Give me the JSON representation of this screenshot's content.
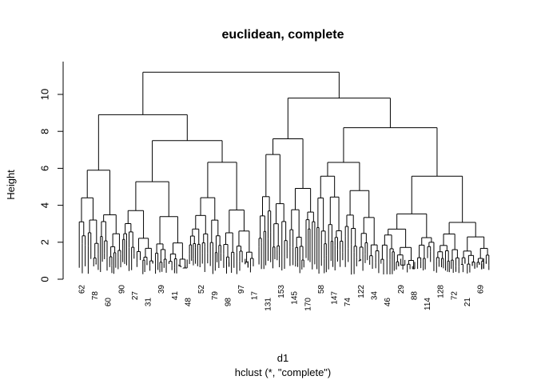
{
  "chart_data": {
    "type": "dendrogram",
    "title": "euclidean, complete",
    "xlabel": "d1",
    "sublabel": "hclust (*, \"complete\")",
    "ylabel": "Height",
    "ylim": [
      0,
      11.2
    ],
    "yticks": [
      0,
      2,
      4,
      6,
      8,
      10
    ],
    "root_height": 11.2,
    "main_clusters": [
      {
        "height": 8.9,
        "children_heights": [
          5.9,
          7.5
        ]
      },
      {
        "height": 9.8,
        "children_heights": [
          7.6,
          8.2
        ]
      }
    ],
    "visible_leaf_labels": [
      "62",
      "78",
      "60",
      "90",
      "27",
      "31",
      "39",
      "41",
      "48",
      "52",
      "79",
      "98",
      "97",
      "17",
      "131",
      "153",
      "145",
      "170",
      "58",
      "147",
      "74",
      "122",
      "34",
      "46",
      "29",
      "88",
      "114",
      "128",
      "72",
      "21",
      "69"
    ]
  }
}
